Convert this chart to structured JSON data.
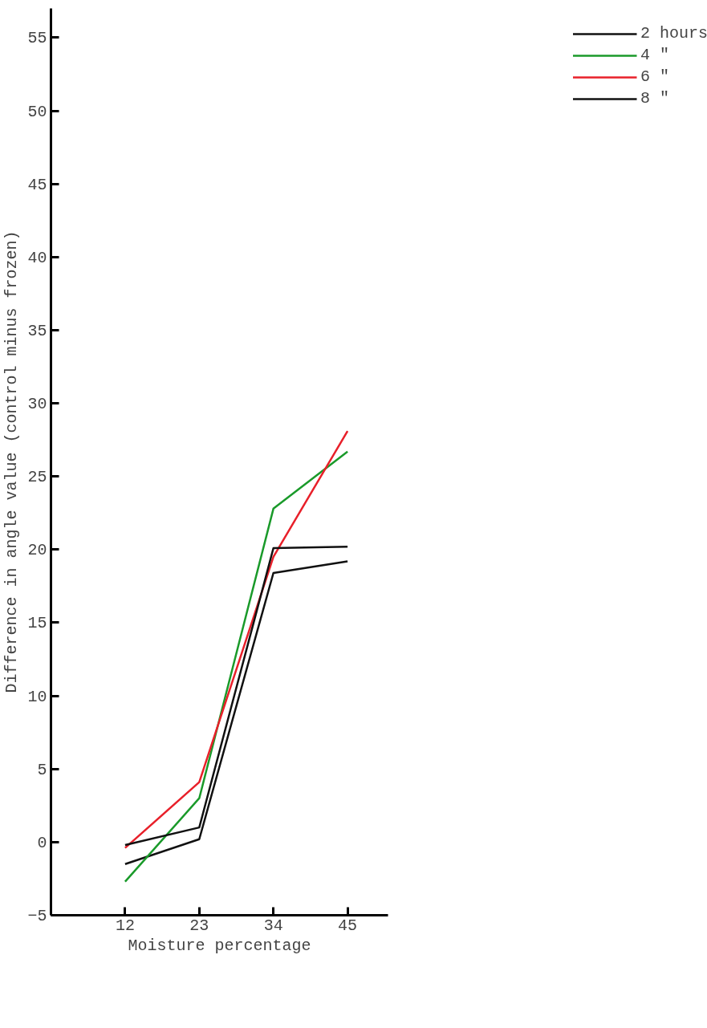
{
  "chart_data": {
    "type": "line",
    "xlabel": "Moisture percentage",
    "ylabel": "Difference in angle value (control minus frozen)",
    "x": [
      12,
      23,
      34,
      45
    ],
    "xlim": [
      1,
      51
    ],
    "xticks": [
      12,
      23,
      34,
      45
    ],
    "ylim": [
      -5,
      57
    ],
    "yticks": [
      -5,
      0,
      5,
      10,
      15,
      20,
      25,
      30,
      35,
      40,
      45,
      50,
      55
    ],
    "grid": false,
    "legend": "top right",
    "marker": "none",
    "line_style": "solid",
    "series": [
      {
        "name": "2 hours",
        "color": "#111111",
        "values": [
          -1.5,
          0.2,
          18.4,
          19.2
        ]
      },
      {
        "name": "4 \"",
        "color": "#1a9a2a",
        "values": [
          -2.7,
          3,
          22.8,
          26.7
        ]
      },
      {
        "name": "6 \"",
        "color": "#e8202a",
        "values": [
          -0.4,
          4.1,
          19.5,
          28.1
        ]
      },
      {
        "name": "8 \"",
        "color": "#111111",
        "values": [
          -0.2,
          1,
          20.1,
          20.2
        ]
      }
    ]
  }
}
